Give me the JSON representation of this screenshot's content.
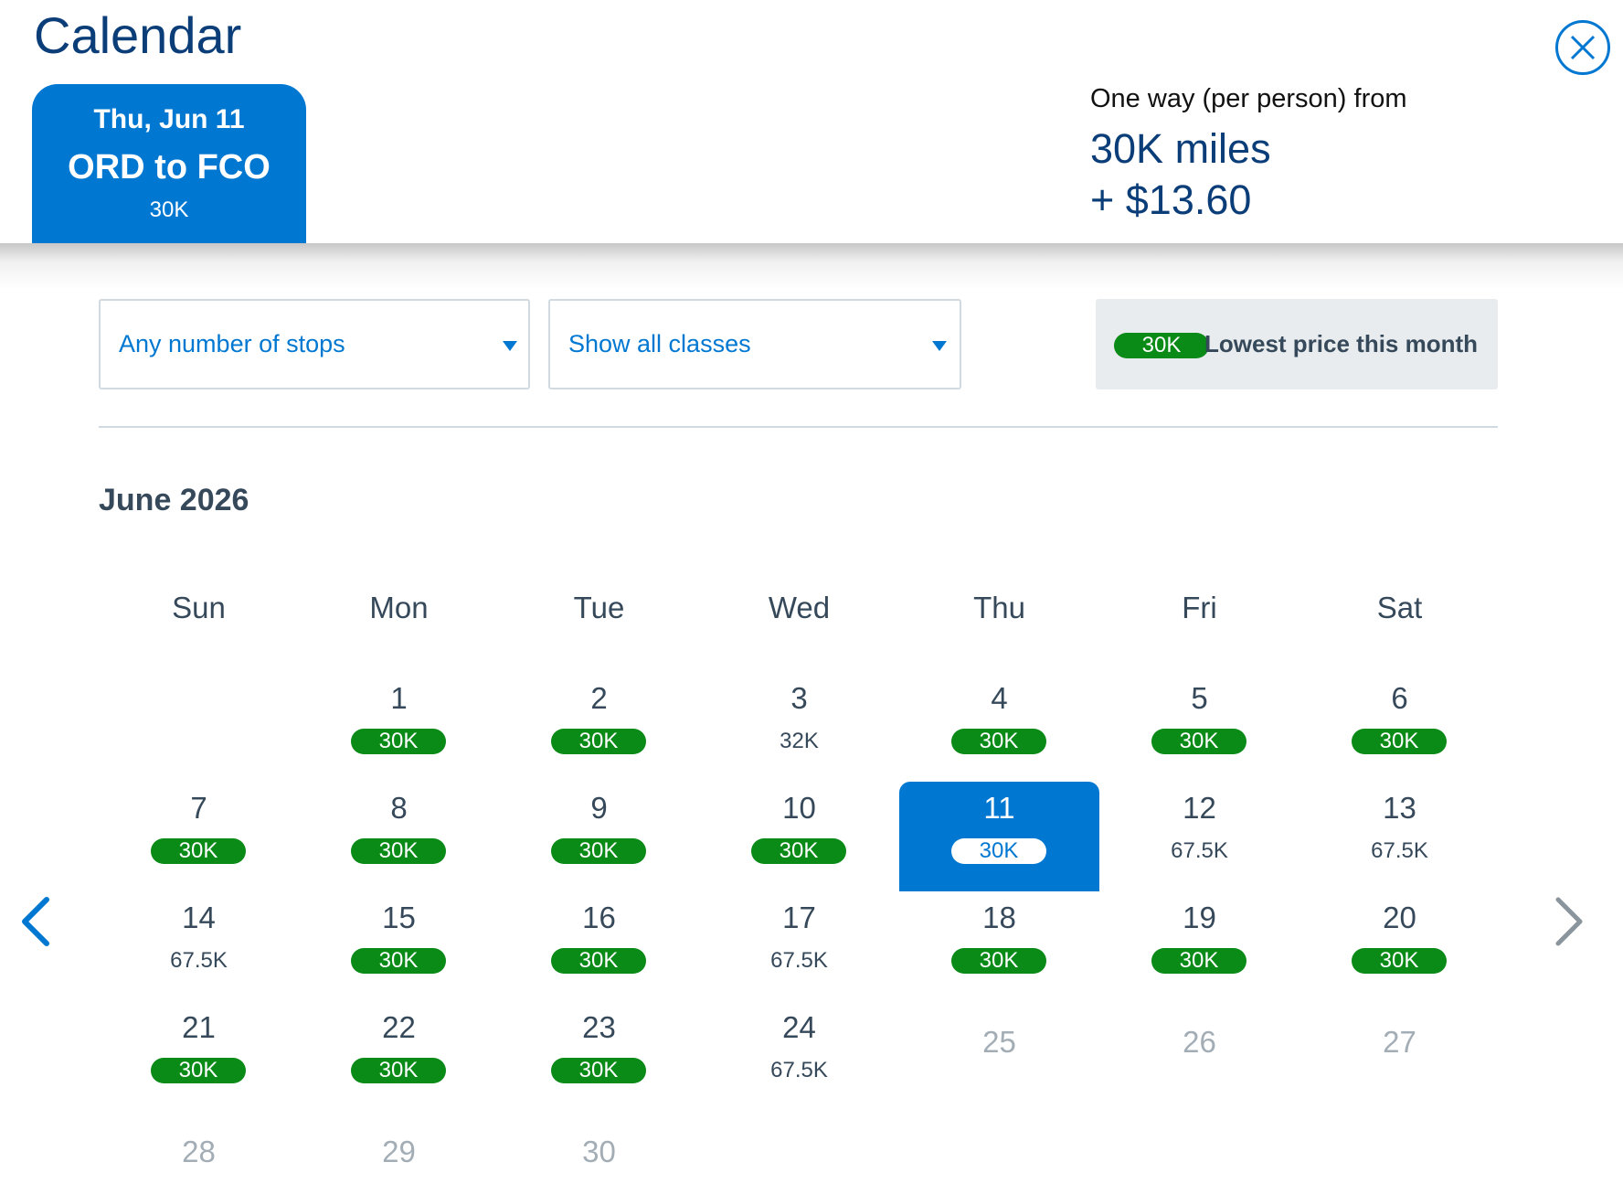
{
  "header": {
    "title": "Calendar",
    "close_icon": "close-circle-icon",
    "flight": {
      "date": "Thu, Jun 11",
      "route": "ORD to FCO",
      "miles": "30K"
    },
    "price": {
      "label": "One way (per person) from",
      "miles": "30K miles",
      "fee": "+ $13.60"
    }
  },
  "filters": {
    "stops": {
      "value": "Any number of stops"
    },
    "classes": {
      "value": "Show all classes"
    },
    "legend": {
      "badge": "30K",
      "text": "Lowest price this month"
    }
  },
  "calendar": {
    "month": "June 2026",
    "weekdays": [
      "Sun",
      "Mon",
      "Tue",
      "Wed",
      "Thu",
      "Fri",
      "Sat"
    ],
    "days": [
      {
        "day": "1",
        "price": "30K",
        "lowest": true
      },
      {
        "day": "2",
        "price": "30K",
        "lowest": true
      },
      {
        "day": "3",
        "price": "32K",
        "lowest": false
      },
      {
        "day": "4",
        "price": "30K",
        "lowest": true
      },
      {
        "day": "5",
        "price": "30K",
        "lowest": true
      },
      {
        "day": "6",
        "price": "30K",
        "lowest": true
      },
      {
        "day": "7",
        "price": "30K",
        "lowest": true
      },
      {
        "day": "8",
        "price": "30K",
        "lowest": true
      },
      {
        "day": "9",
        "price": "30K",
        "lowest": true
      },
      {
        "day": "10",
        "price": "30K",
        "lowest": true
      },
      {
        "day": "11",
        "price": "30K",
        "lowest": true,
        "selected": true
      },
      {
        "day": "12",
        "price": "67.5K",
        "lowest": false
      },
      {
        "day": "13",
        "price": "67.5K",
        "lowest": false
      },
      {
        "day": "14",
        "price": "67.5K",
        "lowest": false
      },
      {
        "day": "15",
        "price": "30K",
        "lowest": true
      },
      {
        "day": "16",
        "price": "30K",
        "lowest": true
      },
      {
        "day": "17",
        "price": "67.5K",
        "lowest": false
      },
      {
        "day": "18",
        "price": "30K",
        "lowest": true
      },
      {
        "day": "19",
        "price": "30K",
        "lowest": true
      },
      {
        "day": "20",
        "price": "30K",
        "lowest": true
      },
      {
        "day": "21",
        "price": "30K",
        "lowest": true
      },
      {
        "day": "22",
        "price": "30K",
        "lowest": true
      },
      {
        "day": "23",
        "price": "30K",
        "lowest": true
      },
      {
        "day": "24",
        "price": "67.5K",
        "lowest": false
      },
      {
        "day": "25",
        "price": "",
        "disabled": true
      },
      {
        "day": "26",
        "price": "",
        "disabled": true
      },
      {
        "day": "27",
        "price": "",
        "disabled": true
      },
      {
        "day": "28",
        "price": "",
        "disabled": true
      },
      {
        "day": "29",
        "price": "",
        "disabled": true
      },
      {
        "day": "30",
        "price": "",
        "disabled": true
      }
    ]
  },
  "nav": {
    "prev_icon": "chevron-left-icon",
    "next_icon": "chevron-right-icon"
  },
  "colors": {
    "brand_blue": "#0078d2",
    "dark_blue": "#0b3e78",
    "lowest_green": "#0a8a16",
    "text": "#36495a",
    "disabled": "#a3adb5"
  }
}
